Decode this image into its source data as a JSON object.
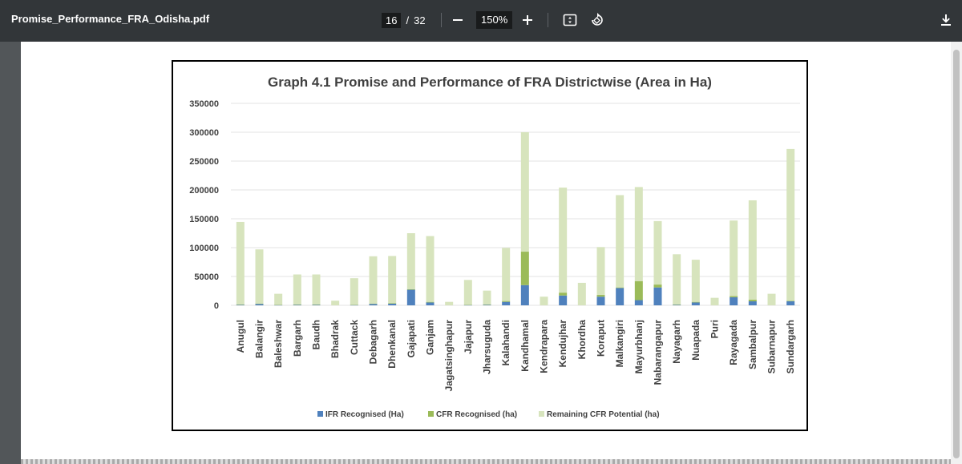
{
  "viewer": {
    "file_name": "Promise_Performance_FRA_Odisha.pdf",
    "current_page": "16",
    "page_separator": "/",
    "total_pages": "32",
    "zoom": "150%",
    "icons": {
      "zoom_out": "minus-icon",
      "zoom_in": "plus-icon",
      "fit": "fit-page-icon",
      "rotate": "rotate-icon",
      "download": "download-icon"
    }
  },
  "chart_data": {
    "type": "bar",
    "stacked": true,
    "title": "Graph 4.1 Promise and Performance of FRA Districtwise (Area in Ha)",
    "ylim": [
      0,
      350000
    ],
    "yticks": [
      "350000",
      "300000",
      "250000",
      "200000",
      "150000",
      "100000",
      "50000",
      "0"
    ],
    "grid": true,
    "legend_position": "bottom",
    "categories": [
      "Anugul",
      "Balangir",
      "Baleshwar",
      "Bargarh",
      "Baudh",
      "Bhadrak",
      "Cuttack",
      "Debagarh",
      "Dhenkanal",
      "Gajapati",
      "Ganjam",
      "Jagatsinghapur",
      "Jajapur",
      "Jharsuguda",
      "Kalahandi",
      "Kandhamal",
      "Kendrapara",
      "Kendujhar",
      "Khordha",
      "Koraput",
      "Malkangiri",
      "Mayurbhanj",
      "Nabarangapur",
      "Nayagarh",
      "Nuapada",
      "Puri",
      "Rayagada",
      "Sambalpur",
      "Subarnapur",
      "Sundargarh"
    ],
    "series": [
      {
        "name": "IFR Recognised (Ha)",
        "color": "#4f81bd",
        "values": [
          1000,
          2500,
          500,
          1000,
          1000,
          0,
          500,
          2500,
          3000,
          27000,
          5000,
          0,
          500,
          1000,
          6000,
          35000,
          0,
          17000,
          0,
          15000,
          30000,
          9000,
          31000,
          1000,
          5000,
          0,
          14000,
          7000,
          0,
          7000
        ]
      },
      {
        "name": "CFR Recognised (ha)",
        "color": "#9bbb59",
        "values": [
          500,
          500,
          500,
          500,
          500,
          0,
          500,
          500,
          500,
          1000,
          1000,
          0,
          500,
          500,
          1500,
          58000,
          0,
          5000,
          0,
          3000,
          1000,
          33000,
          5000,
          500,
          1000,
          0,
          2000,
          3000,
          0,
          1000
        ]
      },
      {
        "name": "Remaining CFR  Potential (ha)",
        "color": "#d7e4bd",
        "values": [
          143000,
          94000,
          19000,
          52000,
          52000,
          8000,
          46000,
          82000,
          82000,
          97000,
          114000,
          6000,
          43000,
          24000,
          92000,
          207000,
          15000,
          182000,
          39000,
          83000,
          160000,
          163000,
          110000,
          87000,
          73000,
          13000,
          131000,
          172000,
          20000,
          263000
        ]
      }
    ]
  }
}
